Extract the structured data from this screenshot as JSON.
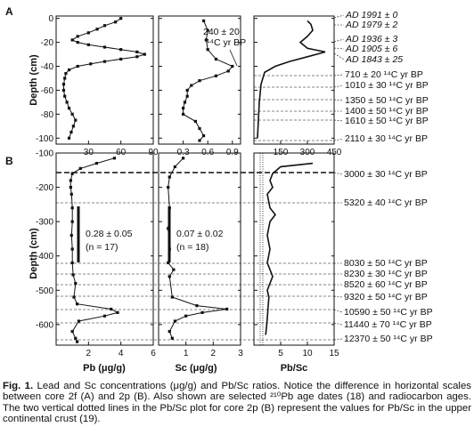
{
  "panels": {
    "A": {
      "label": "A",
      "y_ticks": [
        "0",
        "-20",
        "-40",
        "-60",
        "-80",
        "-100"
      ],
      "pb_ticks": [
        "30",
        "60",
        "90"
      ],
      "sc_ticks": [
        "0.3",
        "0.6",
        "0.9"
      ],
      "ratio_ticks": [
        "150",
        "300",
        "450"
      ],
      "inset_value": "240 ± 20",
      "inset_unit": "¹⁴C yr BP",
      "ad_dates": [
        "AD 1991 ± 0",
        "AD 1979 ± 2",
        "AD 1936 ± 3",
        "AD 1905 ± 6",
        "AD 1843 ± 25"
      ],
      "c14_dates": [
        "710 ± 20 ¹⁴C yr BP",
        "1010 ± 30 ¹⁴C yr BP",
        "1350 ± 50 ¹⁴C yr BP",
        "1400 ± 50 ¹⁴C yr BP",
        "1610 ± 50 ¹⁴C yr BP",
        "2110 ± 30 ¹⁴C yr BP"
      ]
    },
    "B": {
      "label": "B",
      "y_ticks": [
        "-100",
        "-200",
        "-300",
        "-400",
        "-500",
        "-600"
      ],
      "pb_ticks": [
        "2",
        "4",
        "6"
      ],
      "sc_ticks": [
        "1",
        "2",
        "3"
      ],
      "ratio_ticks": [
        "5",
        "10",
        "15"
      ],
      "pb_annotation_value": "0.28 ± 0.05",
      "pb_annotation_n": "(n = 17)",
      "sc_annotation_value": "0.07 ± 0.02",
      "sc_annotation_n": "(n = 18)",
      "c14_dates": [
        "3000 ± 30 ¹⁴C yr BP",
        "5320 ± 40 ¹⁴C yr BP",
        "8030 ± 50 ¹⁴C yr BP",
        "8230 ± 30 ¹⁴C yr BP",
        "8520 ± 60 ¹⁴C yr BP",
        "9320 ± 50 ¹⁴C yr BP",
        "10590 ± 50 ¹⁴C yr BP",
        "11440 ± 70 ¹⁴C yr BP",
        "12370 ± 50 ¹⁴C yr BP"
      ]
    }
  },
  "axis_titles": {
    "depth": "Depth (cm)",
    "pb": "Pb (μg/g)",
    "sc": "Sc (μg/g)",
    "ratio": "Pb/Sc"
  },
  "caption": {
    "label": "Fig. 1.",
    "text": "Lead and Sc concentrations (μg/g) and Pb/Sc ratios. Notice the difference in horizontal scales between core 2f (A) and 2p (B). Also shown are selected ²¹⁰Pb age dates (18) and radiocarbon ages. The two vertical dotted lines in the Pb/Sc plot for core 2p (B) represent the values for Pb/Sc in the upper continental crust (19)."
  },
  "chart_data": [
    {
      "type": "line",
      "panel": "A",
      "x_quantity": "Pb (μg/g)",
      "y_quantity": "Depth (cm)",
      "xlim": [
        0,
        90
      ],
      "ylim": [
        -105,
        2
      ],
      "points": [
        [
          60,
          0
        ],
        [
          55,
          -3
        ],
        [
          45,
          -6
        ],
        [
          38,
          -9
        ],
        [
          30,
          -12
        ],
        [
          20,
          -15
        ],
        [
          15,
          -18
        ],
        [
          20,
          -20
        ],
        [
          30,
          -22
        ],
        [
          45,
          -24
        ],
        [
          60,
          -26
        ],
        [
          75,
          -28
        ],
        [
          82,
          -30
        ],
        [
          75,
          -32
        ],
        [
          60,
          -34
        ],
        [
          45,
          -36
        ],
        [
          32,
          -38
        ],
        [
          20,
          -40
        ],
        [
          12,
          -43
        ],
        [
          9,
          -46
        ],
        [
          8,
          -50
        ],
        [
          7,
          -55
        ],
        [
          7,
          -60
        ],
        [
          8,
          -65
        ],
        [
          10,
          -70
        ],
        [
          12,
          -75
        ],
        [
          15,
          -80
        ],
        [
          18,
          -85
        ],
        [
          16,
          -90
        ],
        [
          14,
          -95
        ],
        [
          12,
          -100
        ]
      ]
    },
    {
      "type": "line",
      "panel": "A",
      "x_quantity": "Sc (μg/g)",
      "y_quantity": "Depth (cm)",
      "xlim": [
        0,
        1.0
      ],
      "ylim": [
        -105,
        2
      ],
      "points": [
        [
          0.55,
          -2
        ],
        [
          0.6,
          -10
        ],
        [
          0.58,
          -18
        ],
        [
          0.6,
          -26
        ],
        [
          0.7,
          -34
        ],
        [
          0.9,
          -40
        ],
        [
          0.85,
          -44
        ],
        [
          0.7,
          -48
        ],
        [
          0.5,
          -52
        ],
        [
          0.4,
          -56
        ],
        [
          0.35,
          -60
        ],
        [
          0.35,
          -65
        ],
        [
          0.32,
          -70
        ],
        [
          0.3,
          -75
        ],
        [
          0.3,
          -80
        ],
        [
          0.45,
          -86
        ],
        [
          0.5,
          -92
        ],
        [
          0.55,
          -98
        ],
        [
          0.5,
          -102
        ]
      ]
    },
    {
      "type": "line",
      "panel": "A",
      "x_quantity": "Pb/Sc",
      "y_quantity": "Depth (cm)",
      "xlim": [
        0,
        450
      ],
      "ylim": [
        -105,
        2
      ],
      "points": [
        [
          300,
          -2
        ],
        [
          320,
          -5
        ],
        [
          330,
          -10
        ],
        [
          300,
          -15
        ],
        [
          260,
          -20
        ],
        [
          300,
          -25
        ],
        [
          400,
          -28
        ],
        [
          300,
          -32
        ],
        [
          200,
          -36
        ],
        [
          120,
          -40
        ],
        [
          60,
          -45
        ],
        [
          40,
          -55
        ],
        [
          30,
          -70
        ],
        [
          25,
          -85
        ],
        [
          20,
          -100
        ]
      ]
    },
    {
      "type": "line",
      "panel": "B",
      "x_quantity": "Pb (μg/g)",
      "y_quantity": "Depth (cm)",
      "xlim": [
        0,
        6
      ],
      "ylim": [
        -660,
        -100
      ],
      "points": [
        [
          3.6,
          -115
        ],
        [
          2.5,
          -130
        ],
        [
          1.5,
          -145
        ],
        [
          1.0,
          -160
        ],
        [
          0.9,
          -180
        ],
        [
          0.9,
          -200
        ],
        [
          0.95,
          -220
        ],
        [
          1.0,
          -260
        ],
        [
          1.0,
          -300
        ],
        [
          0.95,
          -340
        ],
        [
          1.0,
          -380
        ],
        [
          1.0,
          -420
        ],
        [
          1.05,
          -455
        ],
        [
          1.2,
          -480
        ],
        [
          1.1,
          -520
        ],
        [
          1.3,
          -540
        ],
        [
          3.4,
          -555
        ],
        [
          3.8,
          -565
        ],
        [
          3.0,
          -575
        ],
        [
          1.4,
          -590
        ],
        [
          1.0,
          -620
        ],
        [
          1.2,
          -640
        ],
        [
          1.3,
          -650
        ]
      ]
    },
    {
      "type": "line",
      "panel": "B",
      "x_quantity": "Sc (μg/g)",
      "y_quantity": "Depth (cm)",
      "xlim": [
        0,
        3
      ],
      "ylim": [
        -660,
        -100
      ],
      "points": [
        [
          0.9,
          -115
        ],
        [
          0.6,
          -140
        ],
        [
          0.4,
          -170
        ],
        [
          0.35,
          -200
        ],
        [
          0.4,
          -260
        ],
        [
          0.35,
          -320
        ],
        [
          0.4,
          -380
        ],
        [
          0.35,
          -420
        ],
        [
          0.55,
          -440
        ],
        [
          0.4,
          -460
        ],
        [
          0.5,
          -520
        ],
        [
          1.4,
          -545
        ],
        [
          2.5,
          -555
        ],
        [
          1.6,
          -565
        ],
        [
          1.0,
          -575
        ],
        [
          0.6,
          -590
        ],
        [
          0.4,
          -620
        ],
        [
          0.5,
          -640
        ]
      ]
    },
    {
      "type": "line",
      "panel": "B",
      "x_quantity": "Pb/Sc",
      "y_quantity": "Depth (cm)",
      "xlim": [
        0,
        15
      ],
      "ylim": [
        -660,
        -100
      ],
      "points": [
        [
          11,
          -130
        ],
        [
          5,
          -140
        ],
        [
          3.5,
          -160
        ],
        [
          3,
          -180
        ],
        [
          3.5,
          -200
        ],
        [
          2.5,
          -220
        ],
        [
          3,
          -260
        ],
        [
          4,
          -280
        ],
        [
          3,
          -300
        ],
        [
          2.5,
          -340
        ],
        [
          3,
          -380
        ],
        [
          2.5,
          -420
        ],
        [
          3,
          -440
        ],
        [
          3.5,
          -460
        ],
        [
          3,
          -480
        ],
        [
          2.5,
          -500
        ],
        [
          2.8,
          -520
        ],
        [
          2.6,
          -560
        ],
        [
          2.4,
          -600
        ],
        [
          2.2,
          -630
        ]
      ]
    }
  ]
}
